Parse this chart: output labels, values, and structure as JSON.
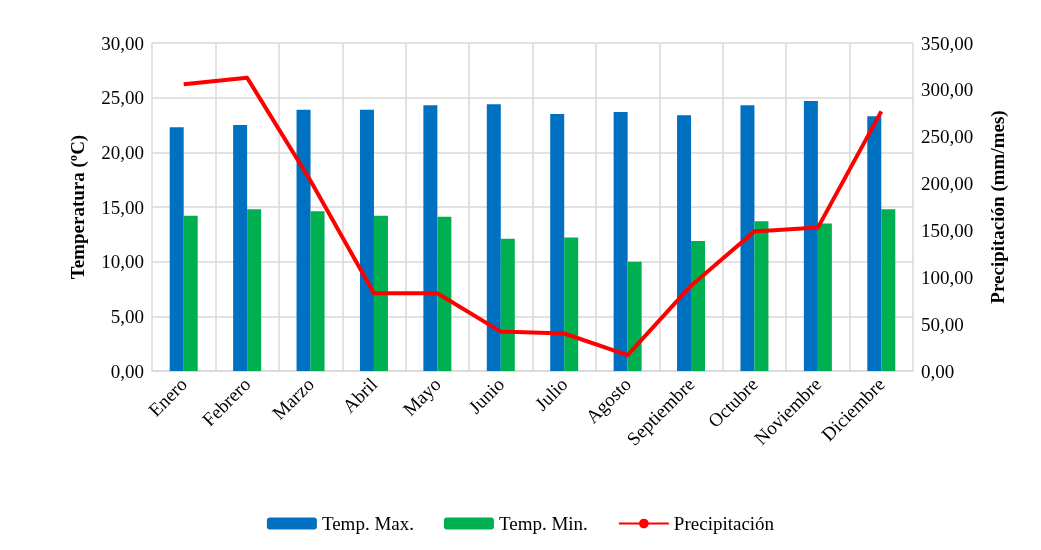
{
  "chart_data": {
    "type": "bar",
    "ylabel": "Temperatura (ºC)",
    "y2label": "Precipitación (mm/mes)",
    "categories": [
      "Enero",
      "Febrero",
      "Marzo",
      "Abril",
      "Mayo",
      "Junio",
      "Julio",
      "Agosto",
      "Septiembre",
      "Octubre",
      "Noviembre",
      "Diciembre"
    ],
    "series": [
      {
        "name": "Temp. Max.",
        "color": "#0070c0",
        "values": [
          22.3,
          22.5,
          23.9,
          23.9,
          24.3,
          24.4,
          23.5,
          23.7,
          23.4,
          24.3,
          24.7,
          23.3
        ]
      },
      {
        "name": "Temp. Min.",
        "color": "#00b050",
        "values": [
          14.2,
          14.8,
          14.6,
          14.2,
          14.1,
          12.1,
          12.2,
          10.0,
          11.9,
          13.7,
          13.5,
          14.8
        ]
      },
      {
        "name": "Precipitación",
        "type": "line",
        "axis": "y2",
        "color": "#ff0000",
        "values": [
          306,
          313,
          203,
          83,
          83,
          42,
          40,
          17,
          91,
          149,
          153,
          277
        ]
      }
    ],
    "ylim": [
      0,
      30
    ],
    "yticks": [
      {
        "value": 0,
        "label": "0,00"
      },
      {
        "value": 5,
        "label": "5,00"
      },
      {
        "value": 10,
        "label": "10,00"
      },
      {
        "value": 15,
        "label": "15,00"
      },
      {
        "value": 20,
        "label": "20,00"
      },
      {
        "value": 25,
        "label": "25,00"
      },
      {
        "value": 30,
        "label": "30,00"
      }
    ],
    "y2lim": [
      0,
      350
    ],
    "y2ticks": [
      {
        "value": 0,
        "label": "0,00"
      },
      {
        "value": 50,
        "label": "50,00"
      },
      {
        "value": 100,
        "label": "100,00"
      },
      {
        "value": 150,
        "label": "150,00"
      },
      {
        "value": 200,
        "label": "200,00"
      },
      {
        "value": 250,
        "label": "250,00"
      },
      {
        "value": 300,
        "label": "300,00"
      },
      {
        "value": 350,
        "label": "350,00"
      }
    ],
    "grid": true,
    "legend": "bottom",
    "marker": "none",
    "line_style": "solid"
  }
}
